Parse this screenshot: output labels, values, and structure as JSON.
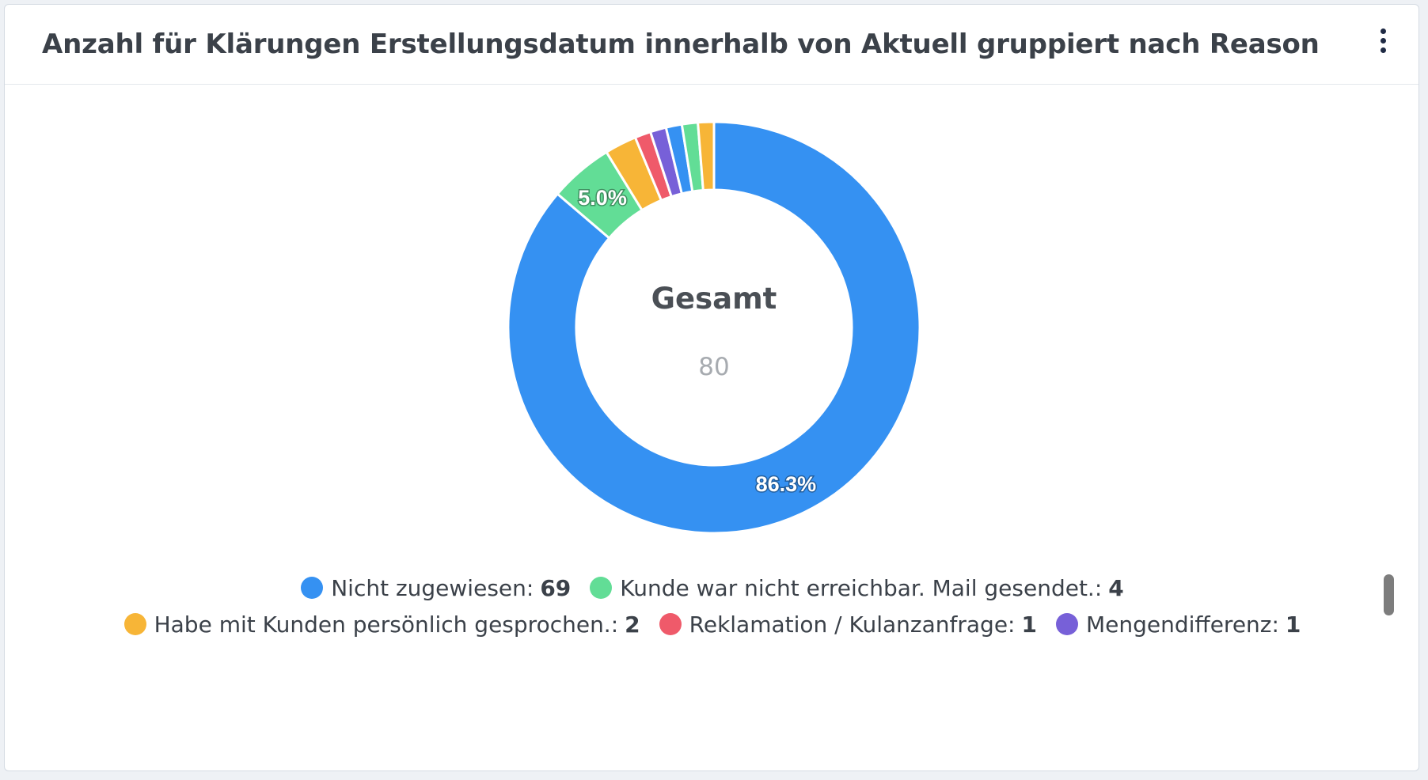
{
  "header": {
    "title": "Anzahl für Klärungen Erstellungsdatum innerhalb von Aktuell gruppiert nach Reason",
    "menu_icon": "kebab-vertical-icon"
  },
  "chart_data": {
    "type": "pie",
    "title": "Anzahl für Klärungen Erstellungsdatum innerhalb von Aktuell gruppiert nach Reason",
    "center_title": "Gesamt",
    "total": "80",
    "slices": [
      {
        "label": "Nicht zugewiesen",
        "value": 69,
        "color": "#3591f2",
        "pct_label": "86.3%"
      },
      {
        "label": "Kunde war nicht erreichbar. Mail gesendet.",
        "value": 4,
        "color": "#62dd96",
        "pct_label": "5.0%"
      },
      {
        "label": "Habe mit Kunden persönlich gesprochen.",
        "value": 2,
        "color": "#f7b537",
        "pct_label": ""
      },
      {
        "label": "Reklamation / Kulanzanfrage",
        "value": 1,
        "color": "#ef5a6a",
        "pct_label": ""
      },
      {
        "label": "Mengendifferenz",
        "value": 1,
        "color": "#7760d8",
        "pct_label": ""
      },
      {
        "label": "",
        "value": 1,
        "color": "#3591f2",
        "pct_label": ""
      },
      {
        "label": "",
        "value": 1,
        "color": "#62dd96",
        "pct_label": ""
      },
      {
        "label": "",
        "value": 1,
        "color": "#f7b537",
        "pct_label": ""
      }
    ],
    "legend": [
      {
        "label": "Nicht zugewiesen:",
        "count": "69",
        "color": "#3591f2"
      },
      {
        "label": "Kunde war nicht erreichbar. Mail gesendet.:",
        "count": "4",
        "color": "#62dd96"
      },
      {
        "label": "Habe mit Kunden persönlich gesprochen.:",
        "count": "2",
        "color": "#f7b537"
      },
      {
        "label": "Reklamation / Kulanzanfrage:",
        "count": "1",
        "color": "#ef5a6a"
      },
      {
        "label": "Mengendifferenz:",
        "count": "1",
        "color": "#7760d8"
      }
    ],
    "legend_placement": "bottom"
  }
}
